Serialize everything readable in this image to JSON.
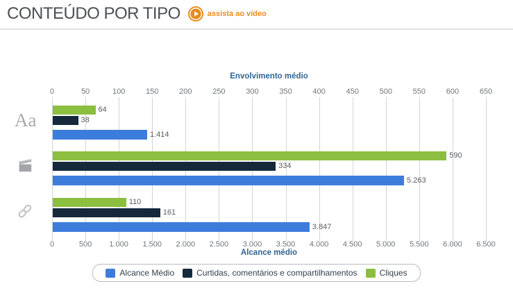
{
  "header": {
    "title": "CONTEÚDO POR TIPO",
    "video_link": "assista ao vídeo"
  },
  "colors": {
    "accent_orange": "#e98b1d",
    "axis_label_blue": "#2e6496",
    "bar_blue": "#3c7ddb",
    "bar_dark_navy": "#16293c",
    "bar_green": "#8cbe3f",
    "gridline": "#d4d4d4"
  },
  "chart_data": {
    "type": "bar",
    "orientation": "horizontal",
    "grid": true,
    "legend_position": "bottom",
    "top_axis": {
      "label": "Envolvimento médio",
      "min": 0,
      "max": 650,
      "step": 50,
      "tick_labels": [
        "0",
        "50",
        "100",
        "150",
        "200",
        "250",
        "300",
        "350",
        "400",
        "450",
        "500",
        "550",
        "600",
        "650"
      ]
    },
    "bottom_axis": {
      "label": "Alcance médio",
      "min": 0,
      "max": 6500,
      "step": 500,
      "tick_labels": [
        "0",
        "500",
        "1.000",
        "1.500",
        "2.000",
        "2.500",
        "3.000",
        "3.500",
        "4.000",
        "4.500",
        "5.000",
        "5.500",
        "6.000",
        "6.500"
      ]
    },
    "series": [
      {
        "name": "Alcance Médio",
        "color": "#3c7ddb",
        "axis": "bottom"
      },
      {
        "name": "Curtidas, comentários e compartilhamentos",
        "color": "#16293c",
        "axis": "top"
      },
      {
        "name": "Cliques",
        "color": "#8cbe3f",
        "axis": "top"
      }
    ],
    "groups": [
      {
        "icon": "text-icon",
        "bars": [
          {
            "series": 2,
            "value": 64,
            "label": "64"
          },
          {
            "series": 1,
            "value": 38,
            "label": "38"
          },
          {
            "series": 0,
            "value": 1414,
            "label": "1.414"
          }
        ]
      },
      {
        "icon": "video-icon",
        "bars": [
          {
            "series": 2,
            "value": 590,
            "label": "590"
          },
          {
            "series": 1,
            "value": 334,
            "label": "334"
          },
          {
            "series": 0,
            "value": 5263,
            "label": "5.263"
          }
        ]
      },
      {
        "icon": "link-icon",
        "bars": [
          {
            "series": 2,
            "value": 110,
            "label": "110"
          },
          {
            "series": 1,
            "value": 161,
            "label": "161"
          },
          {
            "series": 0,
            "value": 3847,
            "label": "3.847"
          }
        ]
      }
    ]
  }
}
